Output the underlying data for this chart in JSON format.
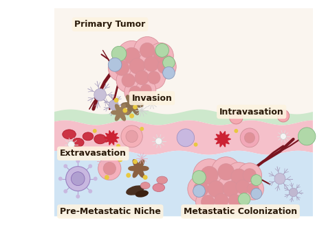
{
  "bg_color": "#ffffff",
  "labels": {
    "primary_tumor": "Primary Tumor",
    "invasion": "Invasion",
    "intravasation": "Intravasation",
    "extravasation": "Extravasation",
    "pre_metastatic": "Pre-Metastatic Niche",
    "metastatic": "Metastatic Colonization"
  },
  "label_bg": "#fdf3e0",
  "label_color": "#2a1a0a",
  "tumor_color": "#f2b5be",
  "tumor_outline": "#d8909a",
  "tumor_inner": "#e09098",
  "green_cell": "#b0d8a8",
  "green_cell_edge": "#80b880",
  "blue_cell": "#b0c4de",
  "blue_cell_edge": "#8899bb",
  "vessel_dark": "#7a1520",
  "top_bg": "#faf5ef",
  "green_layer": "#cde8cc",
  "pink_layer": "#f5c0ca",
  "blue_layer": "#d0e4f4",
  "invasion_bg": "#fef9e8",
  "intravasation_bg": "#fef9e8"
}
